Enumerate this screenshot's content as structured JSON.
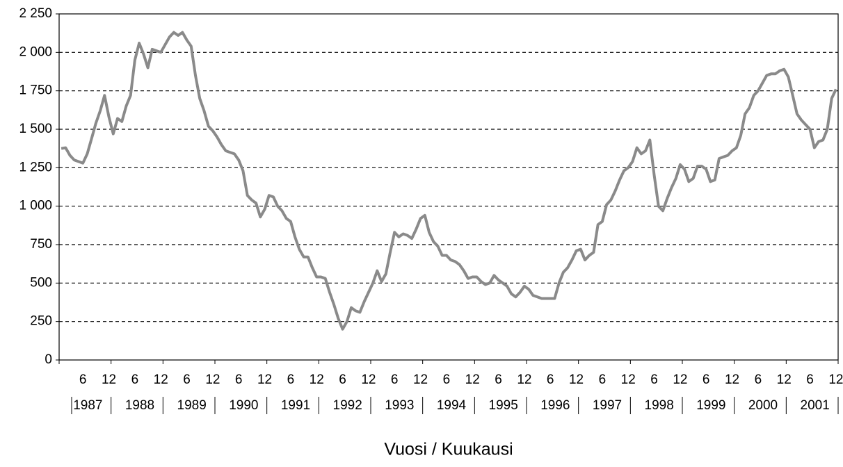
{
  "chart_data": {
    "type": "line",
    "x_axis_label": "Vuosi / Kuukausi",
    "categories": [
      null,
      null,
      null,
      null,
      null,
      "6",
      null,
      null,
      null,
      null,
      null,
      "12",
      null,
      null,
      null,
      null,
      null,
      "6",
      null,
      null,
      null,
      null,
      null,
      "12",
      null,
      null,
      null,
      null,
      null,
      "6",
      null,
      null,
      null,
      null,
      null,
      "12",
      null,
      null,
      null,
      null,
      null,
      "6",
      null,
      null,
      null,
      null,
      null,
      "12",
      null,
      null,
      null,
      null,
      null,
      "6",
      null,
      null,
      null,
      null,
      null,
      "12",
      null,
      null,
      null,
      null,
      null,
      "6",
      null,
      null,
      null,
      null,
      null,
      "12",
      null,
      null,
      null,
      null,
      null,
      "6",
      null,
      null,
      null,
      null,
      null,
      "12",
      null,
      null,
      null,
      null,
      null,
      "6",
      null,
      null,
      null,
      null,
      null,
      "12",
      null,
      null,
      null,
      null,
      null,
      "6",
      null,
      null,
      null,
      null,
      null,
      "12",
      null,
      null,
      null,
      null,
      null,
      "6",
      null,
      null,
      null,
      null,
      null,
      "12",
      null,
      null,
      null,
      null,
      null,
      "6",
      null,
      null,
      null,
      null,
      null,
      "12",
      null,
      null,
      null,
      null,
      null,
      "6",
      null,
      null,
      null,
      null,
      null,
      "12",
      null,
      null,
      null,
      null,
      null,
      "6",
      null,
      null,
      null,
      null,
      null,
      "12",
      null,
      null,
      null,
      null,
      null,
      "6",
      null,
      null,
      null,
      null,
      null,
      "12",
      null,
      null,
      null,
      null,
      null,
      "6",
      null,
      null,
      null,
      null,
      null,
      "12"
    ],
    "groups": [
      "1987",
      "1988",
      "1989",
      "1990",
      "1991",
      "1992",
      "1993",
      "1994",
      "1995",
      "1996",
      "1997",
      "1998",
      "1999",
      "2000",
      "2001"
    ],
    "series": [
      {
        "color": "#8a8a8a",
        "values": [
          1375,
          1380,
          1330,
          1300,
          1290,
          1280,
          1340,
          1440,
          1540,
          1620,
          1720,
          1580,
          1470,
          1570,
          1550,
          1650,
          1720,
          1950,
          2060,
          1990,
          1900,
          2020,
          2010,
          2000,
          2050,
          2100,
          2130,
          2110,
          2130,
          2080,
          2040,
          1850,
          1700,
          1620,
          1520,
          1490,
          1450,
          1400,
          1360,
          1350,
          1340,
          1300,
          1230,
          1070,
          1040,
          1020,
          930,
          980,
          1070,
          1060,
          1000,
          970,
          920,
          900,
          800,
          720,
          670,
          670,
          600,
          540,
          540,
          530,
          440,
          360,
          270,
          200,
          250,
          340,
          320,
          310,
          380,
          440,
          500,
          580,
          510,
          560,
          700,
          830,
          800,
          820,
          810,
          790,
          850,
          920,
          940,
          830,
          770,
          740,
          680,
          680,
          650,
          640,
          620,
          580,
          530,
          540,
          540,
          510,
          490,
          500,
          550,
          520,
          500,
          480,
          430,
          410,
          440,
          480,
          460,
          420,
          410,
          400,
          400,
          400,
          400,
          500,
          570,
          600,
          650,
          710,
          720,
          650,
          680,
          700,
          880,
          900,
          1010,
          1040,
          1100,
          1170,
          1230,
          1250,
          1290,
          1380,
          1340,
          1360,
          1430,
          1200,
          1000,
          970,
          1050,
          1120,
          1180,
          1270,
          1240,
          1160,
          1180,
          1260,
          1260,
          1240,
          1160,
          1170,
          1310,
          1320,
          1330,
          1360,
          1380,
          1460,
          1600,
          1640,
          1720,
          1750,
          1800,
          1850,
          1860,
          1860,
          1880,
          1890,
          1840,
          1720,
          1600,
          1560,
          1530,
          1500,
          1380,
          1420,
          1430,
          1500,
          1700,
          1760
        ]
      }
    ],
    "ylim": [
      0,
      2250
    ],
    "yticks": [
      0,
      250,
      500,
      750,
      {
        "value": 1000,
        "label": "1 000"
      },
      {
        "value": 1250,
        "label": "1 250"
      },
      {
        "value": 1500,
        "label": "1 500"
      },
      {
        "value": 1750,
        "label": "1 750"
      },
      {
        "value": 2000,
        "label": "2 000"
      },
      {
        "value": 2250,
        "label": "2 250"
      }
    ],
    "grid": true
  }
}
